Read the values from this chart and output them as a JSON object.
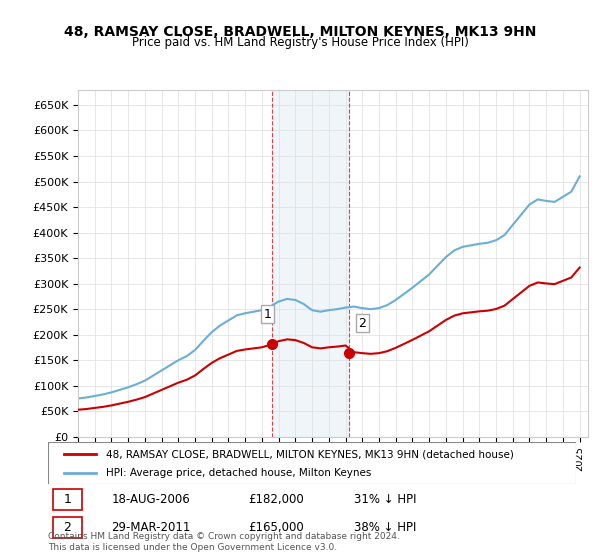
{
  "title_line1": "48, RAMSAY CLOSE, BRADWELL, MILTON KEYNES, MK13 9HN",
  "title_line2": "Price paid vs. HM Land Registry's House Price Index (HPI)",
  "sale1_date": "18-AUG-2006",
  "sale1_price": 182000,
  "sale1_label": "1",
  "sale1_pct": "31% ↓ HPI",
  "sale2_date": "29-MAR-2011",
  "sale2_price": 165000,
  "sale2_label": "2",
  "sale2_pct": "38% ↓ HPI",
  "hpi_color": "#6baed6",
  "price_color": "#cc0000",
  "sale_marker_color": "#cc0000",
  "shaded_color": "#c6dbef",
  "grid_color": "#dddddd",
  "background_color": "#ffffff",
  "legend_label_price": "48, RAMSAY CLOSE, BRADWELL, MILTON KEYNES, MK13 9HN (detached house)",
  "legend_label_hpi": "HPI: Average price, detached house, Milton Keynes",
  "footer": "Contains HM Land Registry data © Crown copyright and database right 2024.\nThis data is licensed under the Open Government Licence v3.0.",
  "ylim": [
    0,
    680000
  ],
  "yticks": [
    0,
    50000,
    100000,
    150000,
    200000,
    250000,
    300000,
    350000,
    400000,
    450000,
    500000,
    550000,
    600000,
    650000
  ],
  "ylabel_format": "£{0}K"
}
